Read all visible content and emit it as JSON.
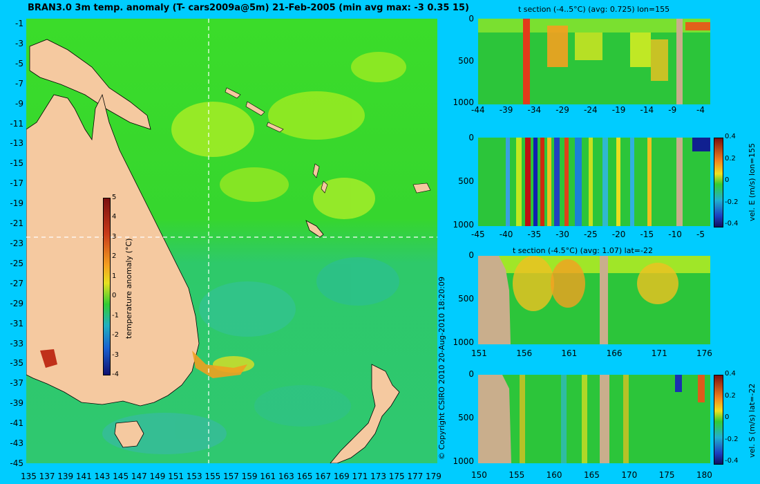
{
  "map": {
    "title": "BRAN3.0 3m temp. anomaly (T- cars2009a@5m) 21-Feb-2005 (min avg max: -3 0.35 15)",
    "lat_labels": [
      "-1",
      "-3",
      "-5",
      "-7",
      "-9",
      "-11",
      "-13",
      "-15",
      "-17",
      "-19",
      "-21",
      "-23",
      "-25",
      "-27",
      "-29",
      "-31",
      "-33",
      "-35",
      "-37",
      "-39",
      "-41",
      "-43",
      "-45"
    ],
    "lon_labels": [
      "135",
      "137",
      "139",
      "141",
      "143",
      "145",
      "147",
      "149",
      "151",
      "153",
      "155",
      "157",
      "159",
      "161",
      "163",
      "165",
      "167",
      "169",
      "171",
      "173",
      "175",
      "177",
      "179"
    ],
    "colorbar": {
      "label": "temperature anomaly (°C)",
      "ticks": [
        "5",
        "4",
        "3",
        "2",
        "1",
        "0",
        "-1",
        "-2",
        "-3",
        "-4"
      ]
    },
    "crosshair": {
      "lon": 155,
      "lat": -22
    }
  },
  "copyright": "© Copyright CSIRO 2010  20-Aug-2010 18:20:09",
  "panels": [
    {
      "title": "t section (-4..5°C) (avg: 0.725) lon=155",
      "y_ticks": [
        "0",
        "500",
        "1000"
      ],
      "x_ticks": [
        "-44",
        "-39",
        "-34",
        "-29",
        "-24",
        "-19",
        "-14",
        "-9",
        "-4"
      ]
    },
    {
      "title": "",
      "y_ticks": [
        "0",
        "500",
        "1000"
      ],
      "x_ticks": [
        "-45",
        "-40",
        "-35",
        "-30",
        "-25",
        "-20",
        "-15",
        "-10",
        "-5"
      ],
      "colorbar_label": "vel. E (m/s) lon=155",
      "colorbar_ticks": [
        "0.4",
        "0.2",
        "0",
        "-0.2",
        "-0.4"
      ]
    },
    {
      "title": "t section (-4.5°C) (avg: 1.07) lat=-22",
      "y_ticks": [
        "0",
        "500",
        "1000"
      ],
      "x_ticks": [
        "151",
        "156",
        "161",
        "166",
        "171",
        "176"
      ]
    },
    {
      "title": "",
      "y_ticks": [
        "0",
        "500",
        "1000"
      ],
      "x_ticks": [
        "150",
        "155",
        "160",
        "165",
        "170",
        "175",
        "180"
      ],
      "colorbar_label": "vel. S (m/s) lat=-22",
      "colorbar_ticks": [
        "0.4",
        "0.2",
        "0",
        "-0.2",
        "-0.4"
      ]
    }
  ],
  "colors": {
    "background": "#00ccff",
    "ocean": "#22cc33",
    "land": "#f5c9a0",
    "section_land": "#c9ae8c"
  }
}
